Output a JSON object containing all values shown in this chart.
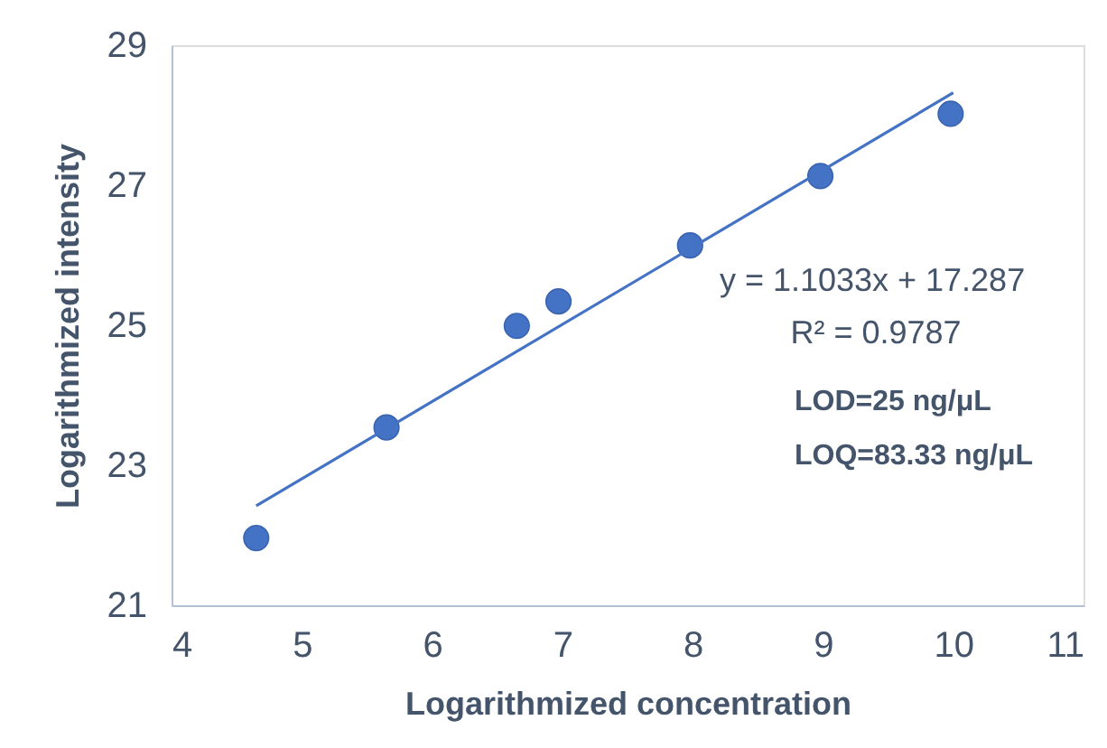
{
  "chart_data": {
    "type": "scatter",
    "xlabel": "Logarithmized concentration",
    "ylabel": "Logarithmized intensity",
    "xlim": [
      4,
      11
    ],
    "xticks": [
      4,
      5,
      6,
      7,
      8,
      9,
      10,
      11
    ],
    "ylim": [
      21,
      29
    ],
    "yticks": [
      21,
      23,
      25,
      27,
      29
    ],
    "grid": false,
    "series": [
      {
        "color": "#4472c4",
        "marker": "circle",
        "x": [
          4.65,
          5.65,
          6.65,
          6.97,
          7.98,
          8.98,
          9.98
        ],
        "values": [
          21.96,
          23.54,
          24.99,
          25.34,
          26.14,
          27.13,
          28.02
        ]
      },
      {
        "type": "line",
        "color": "#4472c4",
        "line_style": "solid",
        "x": [
          4.65,
          10
        ],
        "values": [
          22.42,
          28.32
        ]
      }
    ],
    "annotations": [
      "y = 1.1033x + 17.287",
      "R² = 0.9787",
      "LOD=25 ng/μL",
      "LOQ=83.33 ng/μL"
    ]
  }
}
